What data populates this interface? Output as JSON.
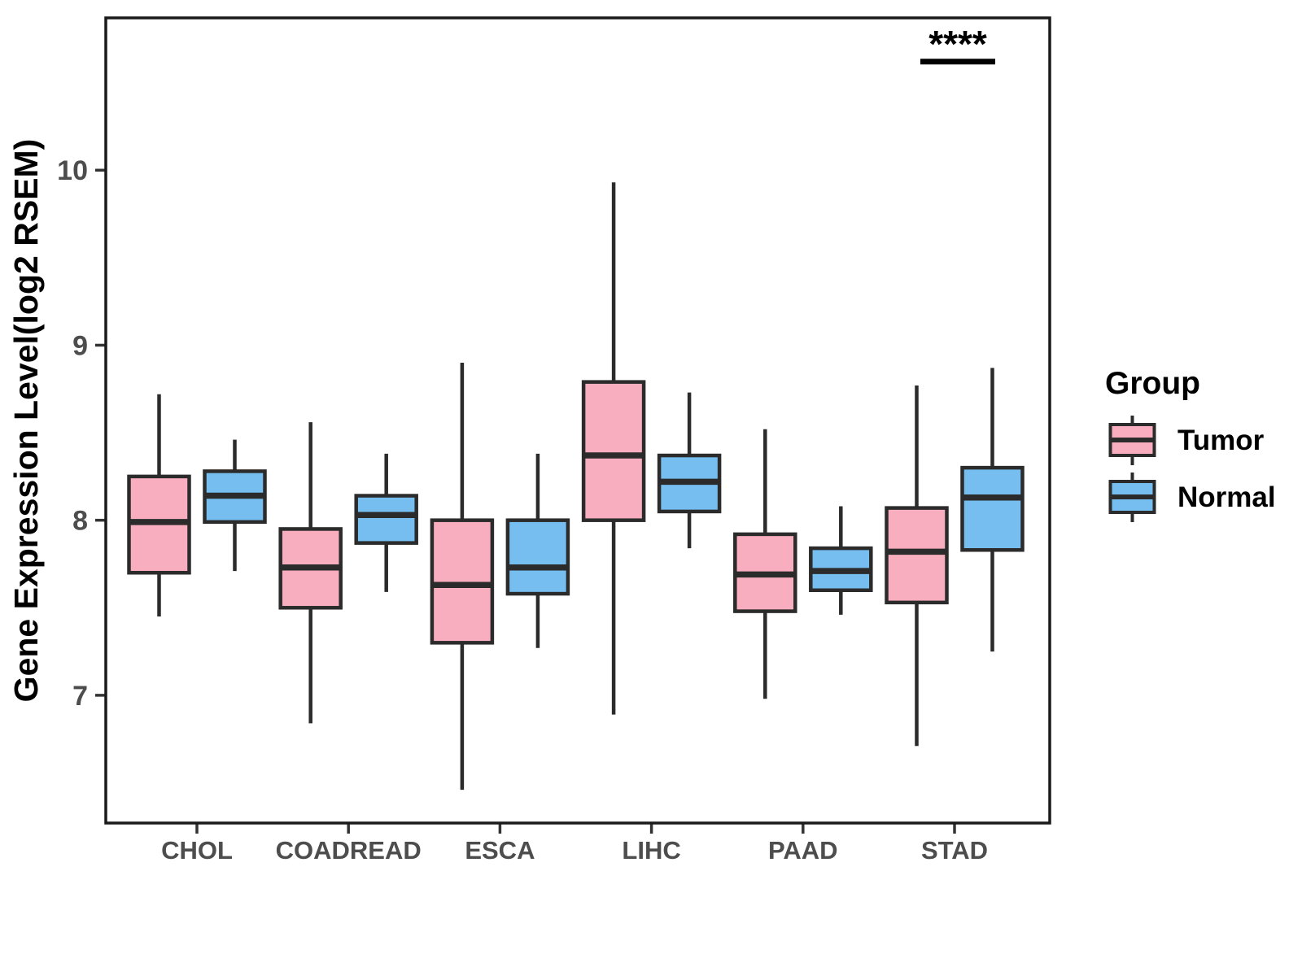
{
  "figure": {
    "ylabel": "Gene Expression Level(log2 RSEM)",
    "significance": {
      "label": "****",
      "category": "STAD",
      "y_value": 10.62
    },
    "legend": {
      "title": "Group",
      "entries": [
        {
          "label": "Tumor",
          "fill": "#F8AEBE"
        },
        {
          "label": "Normal",
          "fill": "#76BDF0"
        }
      ]
    },
    "colors": {
      "tumor_fill": "#F8AEBE",
      "normal_fill": "#76BDF0",
      "line": "#2B2B2B",
      "axis_line": "#1A1A1A",
      "axis_text": "#4D4D4D",
      "title_text": "#000000"
    }
  },
  "chart_data": {
    "type": "boxplot",
    "title": "",
    "xlabel": "",
    "ylabel": "Gene Expression Level(log2 RSEM)",
    "categories": [
      "CHOL",
      "COADREAD",
      "ESCA",
      "LIHC",
      "PAAD",
      "STAD"
    ],
    "yticks": [
      7,
      8,
      9,
      10
    ],
    "ylim": [
      6.27,
      10.87
    ],
    "grid": false,
    "legend_position": "right",
    "legend_title": "Group",
    "series": [
      {
        "name": "Tumor",
        "fill": "#F8AEBE",
        "boxes": [
          {
            "category": "CHOL",
            "whisker_low": 7.45,
            "q1": 7.7,
            "median": 7.99,
            "q3": 8.25,
            "whisker_high": 8.72
          },
          {
            "category": "COADREAD",
            "whisker_low": 6.84,
            "q1": 7.5,
            "median": 7.73,
            "q3": 7.95,
            "whisker_high": 8.56
          },
          {
            "category": "ESCA",
            "whisker_low": 6.46,
            "q1": 7.3,
            "median": 7.63,
            "q3": 8.0,
            "whisker_high": 8.9
          },
          {
            "category": "LIHC",
            "whisker_low": 6.89,
            "q1": 8.0,
            "median": 8.37,
            "q3": 8.79,
            "whisker_high": 9.93
          },
          {
            "category": "PAAD",
            "whisker_low": 6.98,
            "q1": 7.48,
            "median": 7.69,
            "q3": 7.92,
            "whisker_high": 8.52
          },
          {
            "category": "STAD",
            "whisker_low": 6.71,
            "q1": 7.53,
            "median": 7.82,
            "q3": 8.07,
            "whisker_high": 8.77
          }
        ]
      },
      {
        "name": "Normal",
        "fill": "#76BDF0",
        "boxes": [
          {
            "category": "CHOL",
            "whisker_low": 7.71,
            "q1": 7.99,
            "median": 8.14,
            "q3": 8.28,
            "whisker_high": 8.46
          },
          {
            "category": "COADREAD",
            "whisker_low": 7.59,
            "q1": 7.87,
            "median": 8.03,
            "q3": 8.14,
            "whisker_high": 8.38
          },
          {
            "category": "ESCA",
            "whisker_low": 7.27,
            "q1": 7.58,
            "median": 7.73,
            "q3": 8.0,
            "whisker_high": 8.38
          },
          {
            "category": "LIHC",
            "whisker_low": 7.84,
            "q1": 8.05,
            "median": 8.22,
            "q3": 8.37,
            "whisker_high": 8.73
          },
          {
            "category": "PAAD",
            "whisker_low": 7.46,
            "q1": 7.6,
            "median": 7.71,
            "q3": 7.84,
            "whisker_high": 8.08
          },
          {
            "category": "STAD",
            "whisker_low": 7.25,
            "q1": 7.83,
            "median": 8.13,
            "q3": 8.3,
            "whisker_high": 8.87
          }
        ]
      }
    ],
    "annotations": [
      {
        "type": "significance",
        "label": "****",
        "category": "STAD",
        "y": 10.62
      }
    ]
  }
}
